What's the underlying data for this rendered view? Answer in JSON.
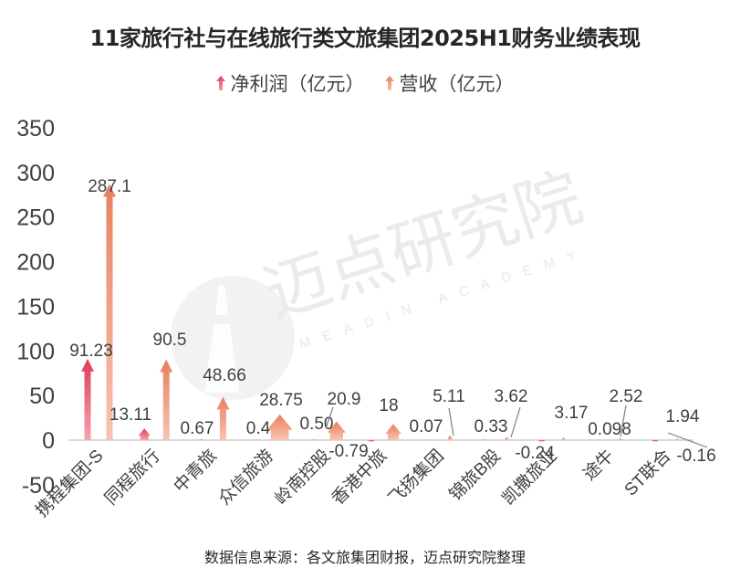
{
  "title": "11家旅行社与在线旅行类文旅集团2025H1财务业绩表现",
  "legend": [
    {
      "label": "净利润（亿元）",
      "color": "#e23a58"
    },
    {
      "label": "营收（亿元）",
      "color": "#e8805e"
    }
  ],
  "watermark": {
    "cn": "迈点研究院",
    "en": "MEADIN ACADEMY"
  },
  "footer": "数据信息来源：各文旅集团财报，迈点研究院整理",
  "colors": {
    "net_profit": "#e23a58",
    "revenue": "#e8805e",
    "axis": "#d9d9d9",
    "text": "#404040"
  },
  "chart_data": {
    "type": "bar",
    "title": "11家旅行社与在线旅行类文旅集团2025H1财务业绩表现",
    "xlabel": "",
    "ylabel": "",
    "ylim": [
      -50,
      350
    ],
    "yticks": [
      -50,
      0,
      50,
      100,
      150,
      200,
      250,
      300,
      350
    ],
    "grid": false,
    "legend_position": "top",
    "categories": [
      "携程集团-S",
      "同程旅行",
      "中青旅",
      "众信旅游",
      "岭南控股",
      "香港中旅",
      "飞扬集团",
      "锦旅B股",
      "凯撒旅业",
      "途牛",
      "ST联合"
    ],
    "series": [
      {
        "name": "净利润（亿元）",
        "values": [
          91.23,
          13.11,
          0.67,
          0.4,
          0.5,
          -0.79,
          0.07,
          0.33,
          -0.24,
          0.098,
          -0.16
        ],
        "labels": [
          "91.23",
          "13.11",
          "0.67",
          "0.4",
          "0.50",
          "-0.79",
          "0.07",
          "0.33",
          "-0.24",
          "0.098",
          "-0.16"
        ]
      },
      {
        "name": "营收（亿元）",
        "values": [
          287.1,
          90.5,
          48.66,
          28.75,
          20.9,
          18,
          5.11,
          3.62,
          3.17,
          2.52,
          1.94
        ],
        "labels": [
          "287.1",
          "90.5",
          "48.66",
          "28.75",
          "20.9",
          "18",
          "5.11",
          "3.62",
          "3.17",
          "2.52",
          "1.94"
        ]
      }
    ],
    "source": "数据信息来源：各文旅集团财报，迈点研究院整理"
  }
}
